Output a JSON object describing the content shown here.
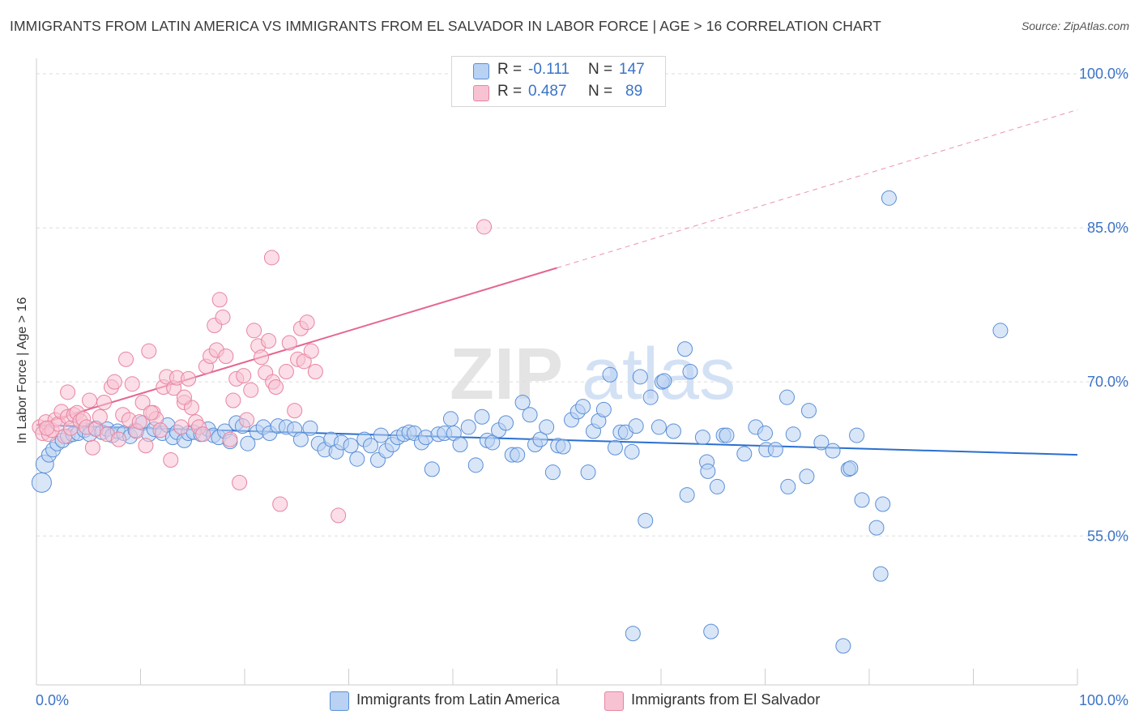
{
  "header": {
    "title": "IMMIGRANTS FROM LATIN AMERICA VS IMMIGRANTS FROM EL SALVADOR IN LABOR FORCE | AGE > 16 CORRELATION CHART",
    "source": "Source: ZipAtlas.com"
  },
  "legend": {
    "r_label": "R =",
    "n_label": "N =",
    "rows": [
      {
        "r": "-0.111",
        "n": "147"
      },
      {
        "r": "0.487",
        "n": "89"
      }
    ]
  },
  "watermark": {
    "zip": "ZIP",
    "atlas": "atlas"
  },
  "colors": {
    "blue_fill": "#b9d1f2",
    "blue_stroke": "#5a8fd8",
    "blue_line": "#2a6fce",
    "pink_fill": "#f7c3d3",
    "pink_stroke": "#e8849f",
    "pink_line": "#e4668f",
    "axis_label": "#3b73c6",
    "grid": "#dddddd"
  },
  "chart_data": {
    "type": "scatter",
    "title": "IMMIGRANTS FROM LATIN AMERICA VS IMMIGRANTS FROM EL SALVADOR IN LABOR FORCE | AGE > 16 CORRELATION CHART",
    "xlabel": "",
    "ylabel": "In Labor Force | Age > 16",
    "xlim": [
      0,
      100
    ],
    "ylim": [
      40.5,
      101.5
    ],
    "x_tick_labels": [
      "0.0%",
      "100.0%"
    ],
    "y_ticks": [
      55,
      70,
      85,
      100
    ],
    "y_tick_labels": [
      "55.0%",
      "70.0%",
      "85.0%",
      "100.0%"
    ],
    "grid": true,
    "legend_position": "top-center",
    "series": [
      {
        "name": "Immigrants from Latin America",
        "r": -0.111,
        "n": 147,
        "trend": {
          "x": [
            0,
            100
          ],
          "y": [
            65.8,
            62.9
          ],
          "style": "solid"
        },
        "points": [
          [
            0.5,
            60.2
          ],
          [
            0.8,
            62.0
          ],
          [
            1.2,
            62.9
          ],
          [
            1.6,
            63.4
          ],
          [
            2.0,
            64.0
          ],
          [
            2.5,
            64.3
          ],
          [
            3.0,
            64.7
          ],
          [
            3.5,
            64.9
          ],
          [
            4.0,
            65.0
          ],
          [
            4.6,
            65.3
          ],
          [
            5.1,
            64.9
          ],
          [
            5.7,
            65.5
          ],
          [
            6.3,
            65.1
          ],
          [
            6.8,
            65.4
          ],
          [
            7.3,
            64.8
          ],
          [
            7.8,
            65.2
          ],
          [
            8.4,
            65.0
          ],
          [
            9.0,
            64.7
          ],
          [
            9.5,
            65.3
          ],
          [
            10.2,
            66.0
          ],
          [
            10.8,
            64.9
          ],
          [
            11.3,
            65.4
          ],
          [
            12.1,
            65.0
          ],
          [
            12.6,
            65.8
          ],
          [
            13.1,
            64.6
          ],
          [
            13.5,
            65.1
          ],
          [
            14.2,
            64.3
          ],
          [
            14.6,
            65.0
          ],
          [
            15.1,
            65.1
          ],
          [
            15.8,
            64.9
          ],
          [
            16.5,
            65.4
          ],
          [
            17.0,
            64.8
          ],
          [
            17.5,
            64.6
          ],
          [
            18.1,
            65.2
          ],
          [
            18.6,
            64.2
          ],
          [
            19.2,
            66.0
          ],
          [
            19.8,
            65.7
          ],
          [
            20.3,
            64.0
          ],
          [
            21.2,
            65.1
          ],
          [
            21.8,
            65.6
          ],
          [
            22.4,
            65.0
          ],
          [
            23.2,
            65.7
          ],
          [
            24.0,
            65.6
          ],
          [
            24.8,
            65.4
          ],
          [
            25.4,
            64.4
          ],
          [
            26.3,
            65.5
          ],
          [
            27.1,
            64.0
          ],
          [
            27.7,
            63.4
          ],
          [
            28.3,
            64.4
          ],
          [
            28.8,
            63.2
          ],
          [
            29.3,
            64.1
          ],
          [
            30.2,
            63.8
          ],
          [
            30.8,
            62.5
          ],
          [
            31.5,
            64.4
          ],
          [
            32.1,
            63.8
          ],
          [
            32.8,
            62.4
          ],
          [
            33.1,
            64.8
          ],
          [
            33.6,
            63.3
          ],
          [
            34.2,
            63.9
          ],
          [
            34.7,
            64.6
          ],
          [
            35.3,
            64.9
          ],
          [
            35.8,
            65.1
          ],
          [
            36.3,
            65.0
          ],
          [
            37.0,
            64.1
          ],
          [
            37.4,
            64.6
          ],
          [
            38.0,
            61.5
          ],
          [
            38.6,
            64.9
          ],
          [
            39.2,
            65.0
          ],
          [
            39.8,
            66.4
          ],
          [
            40.1,
            65.0
          ],
          [
            40.7,
            63.9
          ],
          [
            41.5,
            65.6
          ],
          [
            42.2,
            61.9
          ],
          [
            42.8,
            66.6
          ],
          [
            43.3,
            64.3
          ],
          [
            43.8,
            64.1
          ],
          [
            44.4,
            65.3
          ],
          [
            45.1,
            66.0
          ],
          [
            45.7,
            62.9
          ],
          [
            46.2,
            62.9
          ],
          [
            46.7,
            68.0
          ],
          [
            47.4,
            66.8
          ],
          [
            47.9,
            63.9
          ],
          [
            48.4,
            64.4
          ],
          [
            49.0,
            65.6
          ],
          [
            49.6,
            61.2
          ],
          [
            50.1,
            63.8
          ],
          [
            50.6,
            63.7
          ],
          [
            51.4,
            66.3
          ],
          [
            52.0,
            67.1
          ],
          [
            52.5,
            67.6
          ],
          [
            53.0,
            61.2
          ],
          [
            53.5,
            65.2
          ],
          [
            54.0,
            66.2
          ],
          [
            54.5,
            67.3
          ],
          [
            55.1,
            70.7
          ],
          [
            55.6,
            63.6
          ],
          [
            56.1,
            65.1
          ],
          [
            56.6,
            65.1
          ],
          [
            57.2,
            63.2
          ],
          [
            57.6,
            65.7
          ],
          [
            58.0,
            70.5
          ],
          [
            58.5,
            56.5
          ],
          [
            59.0,
            68.5
          ],
          [
            59.8,
            65.6
          ],
          [
            60.1,
            70.0
          ],
          [
            60.3,
            70.1
          ],
          [
            61.2,
            65.2
          ],
          [
            62.3,
            73.2
          ],
          [
            62.5,
            59.0
          ],
          [
            62.8,
            71.0
          ],
          [
            64.0,
            64.6
          ],
          [
            64.4,
            62.2
          ],
          [
            64.5,
            61.3
          ],
          [
            65.4,
            59.8
          ],
          [
            66.0,
            64.8
          ],
          [
            66.3,
            64.8
          ],
          [
            68.0,
            63.0
          ],
          [
            69.1,
            65.6
          ],
          [
            70.0,
            65.0
          ],
          [
            70.1,
            63.4
          ],
          [
            71.0,
            63.4
          ],
          [
            72.1,
            68.5
          ],
          [
            72.2,
            59.8
          ],
          [
            72.7,
            64.9
          ],
          [
            74.0,
            60.8
          ],
          [
            74.2,
            67.2
          ],
          [
            75.4,
            64.1
          ],
          [
            76.5,
            63.3
          ],
          [
            78.0,
            61.5
          ],
          [
            78.2,
            61.6
          ],
          [
            78.8,
            64.8
          ],
          [
            79.3,
            58.5
          ],
          [
            80.7,
            55.8
          ],
          [
            81.1,
            51.3
          ],
          [
            81.3,
            58.1
          ],
          [
            81.9,
            87.9
          ],
          [
            92.6,
            75.0
          ],
          [
            57.3,
            45.5
          ],
          [
            64.8,
            45.7
          ],
          [
            77.5,
            44.3
          ]
        ]
      },
      {
        "name": "Immigrants from El Salvador",
        "r": 0.487,
        "n": 89,
        "trend": {
          "x": [
            0,
            50
          ],
          "y": [
            65.8,
            81.1
          ],
          "extend_to": [
            100,
            96.5
          ],
          "style": "solid-then-dashed"
        },
        "points": [
          [
            0.3,
            65.6
          ],
          [
            0.6,
            65.0
          ],
          [
            0.9,
            66.1
          ],
          [
            1.2,
            64.9
          ],
          [
            1.5,
            65.3
          ],
          [
            1.8,
            66.3
          ],
          [
            2.1,
            65.9
          ],
          [
            2.4,
            67.1
          ],
          [
            2.7,
            64.7
          ],
          [
            3.0,
            66.6
          ],
          [
            3.0,
            69.0
          ],
          [
            3.3,
            65.5
          ],
          [
            3.6,
            66.8
          ],
          [
            3.9,
            67.0
          ],
          [
            4.2,
            66.2
          ],
          [
            4.5,
            66.4
          ],
          [
            4.8,
            65.6
          ],
          [
            5.1,
            68.2
          ],
          [
            5.4,
            63.6
          ],
          [
            5.7,
            65.4
          ],
          [
            6.1,
            66.6
          ],
          [
            6.5,
            68.0
          ],
          [
            6.8,
            64.9
          ],
          [
            7.2,
            69.5
          ],
          [
            7.5,
            70.0
          ],
          [
            7.9,
            64.4
          ],
          [
            8.3,
            66.8
          ],
          [
            8.6,
            72.2
          ],
          [
            8.9,
            66.3
          ],
          [
            9.2,
            69.8
          ],
          [
            9.6,
            65.2
          ],
          [
            9.9,
            66.1
          ],
          [
            10.2,
            68.0
          ],
          [
            10.5,
            63.8
          ],
          [
            10.8,
            73.0
          ],
          [
            11.2,
            67.0
          ],
          [
            11.5,
            66.4
          ],
          [
            11.9,
            65.3
          ],
          [
            12.2,
            69.5
          ],
          [
            12.5,
            70.5
          ],
          [
            12.9,
            62.4
          ],
          [
            13.2,
            69.4
          ],
          [
            13.5,
            70.4
          ],
          [
            13.9,
            65.6
          ],
          [
            14.2,
            68.0
          ],
          [
            14.6,
            70.3
          ],
          [
            14.9,
            67.5
          ],
          [
            15.3,
            66.1
          ],
          [
            15.6,
            65.6
          ],
          [
            16.0,
            64.9
          ],
          [
            16.3,
            71.5
          ],
          [
            16.7,
            72.5
          ],
          [
            17.1,
            75.5
          ],
          [
            17.3,
            73.1
          ],
          [
            17.6,
            78.0
          ],
          [
            17.9,
            76.3
          ],
          [
            18.2,
            72.5
          ],
          [
            18.6,
            64.4
          ],
          [
            18.9,
            68.2
          ],
          [
            19.2,
            70.3
          ],
          [
            19.5,
            60.2
          ],
          [
            19.9,
            70.6
          ],
          [
            20.2,
            66.3
          ],
          [
            20.6,
            69.2
          ],
          [
            20.9,
            75.0
          ],
          [
            21.3,
            73.5
          ],
          [
            21.6,
            72.4
          ],
          [
            22.0,
            70.9
          ],
          [
            22.3,
            74.0
          ],
          [
            22.6,
            82.1
          ],
          [
            22.7,
            70.0
          ],
          [
            23.0,
            69.5
          ],
          [
            23.4,
            58.1
          ],
          [
            24.0,
            71.0
          ],
          [
            24.3,
            73.8
          ],
          [
            24.8,
            67.2
          ],
          [
            25.1,
            72.2
          ],
          [
            25.4,
            75.2
          ],
          [
            25.7,
            72.0
          ],
          [
            26.0,
            75.8
          ],
          [
            26.4,
            73.0
          ],
          [
            26.8,
            71.0
          ],
          [
            29.0,
            57.0
          ],
          [
            43.0,
            85.1
          ],
          [
            14.2,
            68.5
          ],
          [
            11.0,
            67.0
          ],
          [
            1.0,
            65.5
          ]
        ]
      }
    ]
  },
  "bottom_legend": [
    {
      "label": "Immigrants from Latin America"
    },
    {
      "label": "Immigrants from El Salvador"
    }
  ]
}
